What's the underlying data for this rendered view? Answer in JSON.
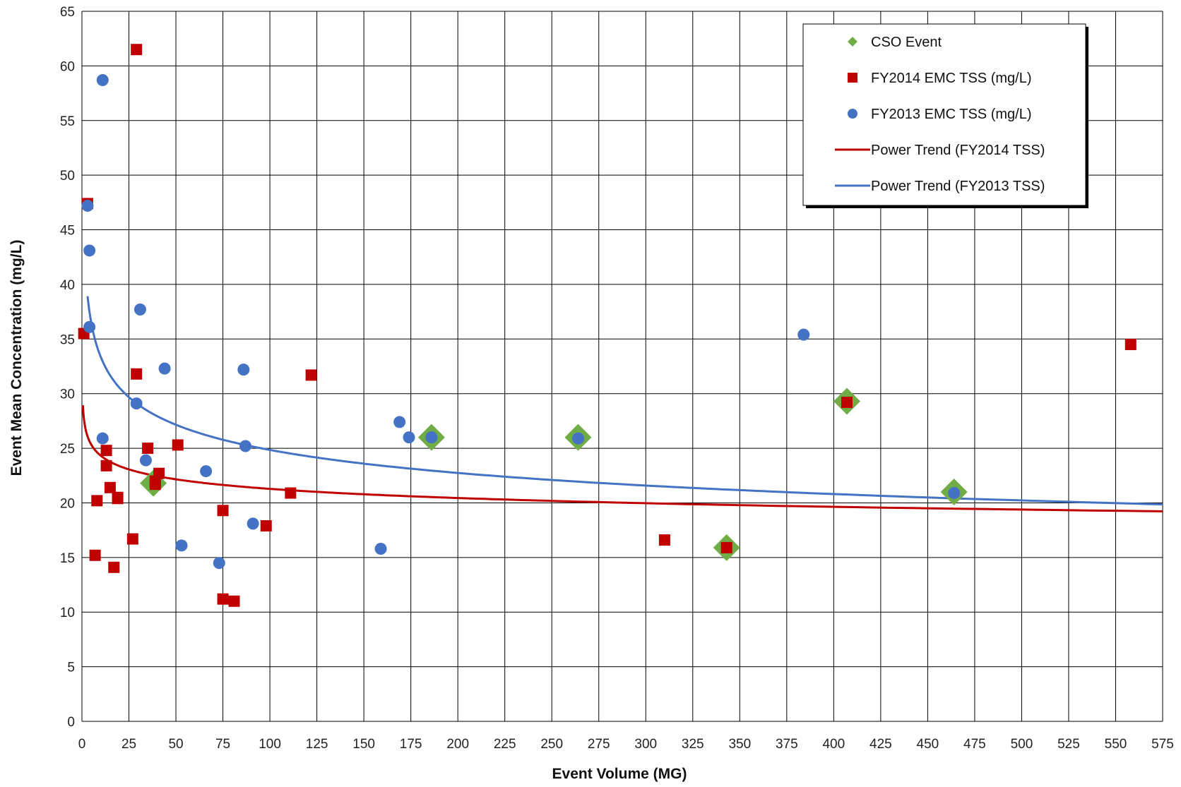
{
  "chart_data": {
    "type": "scatter",
    "title": "",
    "xlabel": "Event Volume (MG)",
    "ylabel": "Event Mean Concentration (mg/L)",
    "xlim": [
      0,
      575
    ],
    "ylim": [
      0,
      65
    ],
    "xticks": [
      0,
      25,
      50,
      75,
      100,
      125,
      150,
      175,
      200,
      225,
      250,
      275,
      300,
      325,
      350,
      375,
      400,
      425,
      450,
      475,
      500,
      525,
      550,
      575
    ],
    "yticks": [
      0,
      5,
      10,
      15,
      20,
      25,
      30,
      35,
      40,
      45,
      50,
      55,
      60,
      65
    ],
    "grid": true,
    "legend_position": "top-right",
    "legend": [
      {
        "label": "CSO Event",
        "marker": "diamond",
        "color": "#70ad47"
      },
      {
        "label": "FY2014 EMC TSS (mg/L)",
        "marker": "square",
        "color": "#c00000"
      },
      {
        "label": "FY2013 EMC TSS (mg/L)",
        "marker": "circle",
        "color": "#4472c4"
      },
      {
        "label": "Power Trend (FY2014 TSS)",
        "marker": "line",
        "color": "#c00000"
      },
      {
        "label": "Power Trend (FY2013 TSS)",
        "marker": "line",
        "color": "#4472c4"
      }
    ],
    "series": [
      {
        "name": "CSO Event",
        "kind": "points",
        "marker": "diamond",
        "color": "#70ad47",
        "points": [
          [
            38,
            21.8
          ],
          [
            186,
            26
          ],
          [
            264,
            26
          ],
          [
            343,
            15.9
          ],
          [
            407,
            29.3
          ],
          [
            464,
            21
          ]
        ]
      },
      {
        "name": "FY2014 EMC TSS (mg/L)",
        "kind": "points",
        "marker": "square",
        "color": "#c00000",
        "points": [
          [
            1,
            35.5
          ],
          [
            3,
            47.4
          ],
          [
            7,
            15.2
          ],
          [
            8,
            20.2
          ],
          [
            13,
            24.8
          ],
          [
            13,
            23.4
          ],
          [
            15,
            21.4
          ],
          [
            17,
            14.1
          ],
          [
            19,
            20.4
          ],
          [
            19,
            20.5
          ],
          [
            27,
            16.7
          ],
          [
            29,
            31.8
          ],
          [
            29,
            61.5
          ],
          [
            35,
            25
          ],
          [
            39,
            22
          ],
          [
            39,
            21.7
          ],
          [
            41,
            22.7
          ],
          [
            51,
            25.3
          ],
          [
            75,
            19.3
          ],
          [
            75,
            11.2
          ],
          [
            81,
            11
          ],
          [
            98,
            17.9
          ],
          [
            111,
            20.9
          ],
          [
            122,
            31.7
          ],
          [
            310,
            16.6
          ],
          [
            343,
            15.9
          ],
          [
            407,
            29.2
          ],
          [
            558,
            34.5
          ]
        ]
      },
      {
        "name": "FY2013 EMC TSS (mg/L)",
        "kind": "points",
        "marker": "circle",
        "color": "#4472c4",
        "points": [
          [
            3,
            47.2
          ],
          [
            4,
            43.1
          ],
          [
            4,
            36.1
          ],
          [
            11,
            58.7
          ],
          [
            11,
            25.9
          ],
          [
            29,
            29.1
          ],
          [
            31,
            37.7
          ],
          [
            34,
            23.9
          ],
          [
            44,
            32.3
          ],
          [
            53,
            16.1
          ],
          [
            66,
            22.9
          ],
          [
            73,
            14.5
          ],
          [
            86,
            32.2
          ],
          [
            87,
            25.2
          ],
          [
            91,
            18.1
          ],
          [
            159,
            15.8
          ],
          [
            169,
            27.4
          ],
          [
            174,
            26
          ],
          [
            186,
            26
          ],
          [
            264,
            25.9
          ],
          [
            384,
            35.4
          ],
          [
            464,
            20.9
          ]
        ]
      },
      {
        "name": "Power Trend (FY2014 TSS)",
        "kind": "trend",
        "color": "#c00000",
        "coef": 27.8,
        "exp": -0.058,
        "x_range": [
          0.5,
          575
        ]
      },
      {
        "name": "Power Trend (FY2013 TSS)",
        "kind": "trend",
        "color": "#4472c4",
        "coef": 44.8,
        "exp": -0.128,
        "x_range": [
          3,
          575
        ]
      }
    ]
  }
}
